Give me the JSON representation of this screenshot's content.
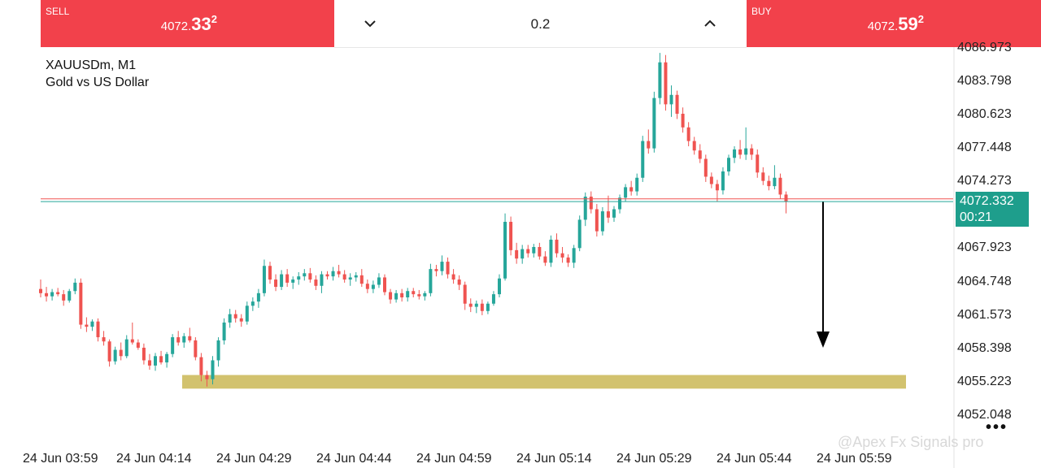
{
  "trade_bar": {
    "sell": {
      "label": "SELL",
      "price_main": "4072.",
      "price_big": "33",
      "price_sup": "2"
    },
    "buy": {
      "label": "BUY",
      "price_main": "4072.",
      "price_big": "59",
      "price_sup": "2"
    },
    "volume": "0.2",
    "volume_down_icon": "chevron-down-icon",
    "volume_up_icon": "chevron-up-icon"
  },
  "symbol": {
    "name": "XAUUSDm, M1",
    "description": "Gold vs US Dollar"
  },
  "price_axis": {
    "labels": [
      "4086.973",
      "4083.798",
      "4080.623",
      "4077.448",
      "4074.273",
      "4067.923",
      "4064.748",
      "4061.573",
      "4058.398",
      "4055.223",
      "4052.048"
    ],
    "current_price": "4072.332",
    "countdown": "00:21"
  },
  "time_axis": {
    "labels": [
      "24 Jun 03:59",
      "24 Jun 04:14",
      "24 Jun 04:29",
      "24 Jun 04:44",
      "24 Jun 04:59",
      "24 Jun 05:14",
      "24 Jun 05:29",
      "24 Jun 05:44",
      "24 Jun 05:59"
    ]
  },
  "watermark": "@Apex Fx Signals pro",
  "more_icon": "more-dots-icon",
  "colors": {
    "bull": "#26a69a",
    "bear": "#ef5350",
    "zone": "#d2c26e",
    "header_red": "#f2414b",
    "current_price_bg": "#1e9e8c"
  },
  "chart_data": {
    "type": "candlestick",
    "symbol": "XAUUSDm",
    "timeframe": "M1",
    "ylim": [
      4052.048,
      4086.973
    ],
    "current_bid": 4072.332,
    "current_ask": 4072.592,
    "support_zone": [
      4054.5,
      4055.8
    ],
    "projection_arrow": {
      "from": 4072.3,
      "to": 4058.4
    },
    "candles": [
      {
        "o": 4064.0,
        "h": 4064.9,
        "l": 4063.2,
        "c": 4063.6
      },
      {
        "o": 4063.6,
        "h": 4064.2,
        "l": 4062.8,
        "c": 4063.3
      },
      {
        "o": 4063.3,
        "h": 4064.0,
        "l": 4062.9,
        "c": 4063.7
      },
      {
        "o": 4063.7,
        "h": 4064.1,
        "l": 4063.3,
        "c": 4063.5
      },
      {
        "o": 4063.5,
        "h": 4063.9,
        "l": 4062.4,
        "c": 4062.9
      },
      {
        "o": 4062.9,
        "h": 4064.0,
        "l": 4062.7,
        "c": 4063.8
      },
      {
        "o": 4063.8,
        "h": 4065.0,
        "l": 4063.5,
        "c": 4064.6
      },
      {
        "o": 4064.6,
        "h": 4065.0,
        "l": 4060.2,
        "c": 4060.6
      },
      {
        "o": 4060.6,
        "h": 4061.3,
        "l": 4059.9,
        "c": 4060.4
      },
      {
        "o": 4060.4,
        "h": 4061.1,
        "l": 4060.0,
        "c": 4060.9
      },
      {
        "o": 4060.9,
        "h": 4061.2,
        "l": 4059.0,
        "c": 4059.4
      },
      {
        "o": 4059.4,
        "h": 4060.0,
        "l": 4058.6,
        "c": 4059.0
      },
      {
        "o": 4059.0,
        "h": 4059.2,
        "l": 4056.6,
        "c": 4057.1
      },
      {
        "o": 4057.1,
        "h": 4058.5,
        "l": 4056.8,
        "c": 4058.2
      },
      {
        "o": 4058.2,
        "h": 4058.9,
        "l": 4057.2,
        "c": 4057.6
      },
      {
        "o": 4057.6,
        "h": 4059.6,
        "l": 4057.4,
        "c": 4059.2
      },
      {
        "o": 4059.2,
        "h": 4060.8,
        "l": 4058.7,
        "c": 4058.9
      },
      {
        "o": 4058.9,
        "h": 4059.2,
        "l": 4058.2,
        "c": 4058.4
      },
      {
        "o": 4058.4,
        "h": 4058.8,
        "l": 4056.8,
        "c": 4057.2
      },
      {
        "o": 4057.2,
        "h": 4057.8,
        "l": 4056.3,
        "c": 4056.7
      },
      {
        "o": 4056.7,
        "h": 4057.9,
        "l": 4056.2,
        "c": 4057.6
      },
      {
        "o": 4057.6,
        "h": 4058.1,
        "l": 4056.8,
        "c": 4057.0
      },
      {
        "o": 4057.0,
        "h": 4058.0,
        "l": 4056.5,
        "c": 4057.8
      },
      {
        "o": 4057.8,
        "h": 4059.7,
        "l": 4057.5,
        "c": 4059.4
      },
      {
        "o": 4059.4,
        "h": 4060.0,
        "l": 4058.6,
        "c": 4058.9
      },
      {
        "o": 4058.9,
        "h": 4059.8,
        "l": 4058.4,
        "c": 4059.5
      },
      {
        "o": 4059.5,
        "h": 4060.3,
        "l": 4058.9,
        "c": 4059.1
      },
      {
        "o": 4059.1,
        "h": 4059.4,
        "l": 4057.2,
        "c": 4057.5
      },
      {
        "o": 4057.5,
        "h": 4057.9,
        "l": 4055.2,
        "c": 4055.8
      },
      {
        "o": 4055.8,
        "h": 4056.2,
        "l": 4054.7,
        "c": 4055.4
      },
      {
        "o": 4055.4,
        "h": 4057.6,
        "l": 4054.9,
        "c": 4057.2
      },
      {
        "o": 4057.2,
        "h": 4059.4,
        "l": 4056.6,
        "c": 4059.1
      },
      {
        "o": 4059.1,
        "h": 4061.2,
        "l": 4058.7,
        "c": 4060.8
      },
      {
        "o": 4060.8,
        "h": 4062.1,
        "l": 4060.3,
        "c": 4061.6
      },
      {
        "o": 4061.6,
        "h": 4062.0,
        "l": 4060.8,
        "c": 4061.2
      },
      {
        "o": 4061.2,
        "h": 4061.6,
        "l": 4060.4,
        "c": 4060.9
      },
      {
        "o": 4060.9,
        "h": 4062.8,
        "l": 4060.6,
        "c": 4062.4
      },
      {
        "o": 4062.4,
        "h": 4063.2,
        "l": 4061.9,
        "c": 4062.8
      },
      {
        "o": 4062.8,
        "h": 4064.0,
        "l": 4062.2,
        "c": 4063.6
      },
      {
        "o": 4063.6,
        "h": 4066.8,
        "l": 4063.3,
        "c": 4066.2
      },
      {
        "o": 4066.2,
        "h": 4066.6,
        "l": 4064.5,
        "c": 4064.9
      },
      {
        "o": 4064.9,
        "h": 4065.4,
        "l": 4063.8,
        "c": 4064.2
      },
      {
        "o": 4064.2,
        "h": 4065.8,
        "l": 4063.9,
        "c": 4065.4
      },
      {
        "o": 4065.4,
        "h": 4065.9,
        "l": 4064.2,
        "c": 4064.6
      },
      {
        "o": 4064.6,
        "h": 4065.2,
        "l": 4064.0,
        "c": 4064.9
      },
      {
        "o": 4064.9,
        "h": 4065.6,
        "l": 4064.4,
        "c": 4065.2
      },
      {
        "o": 4065.2,
        "h": 4065.9,
        "l": 4064.8,
        "c": 4065.5
      },
      {
        "o": 4065.5,
        "h": 4066.0,
        "l": 4064.6,
        "c": 4064.9
      },
      {
        "o": 4064.9,
        "h": 4065.3,
        "l": 4063.9,
        "c": 4064.3
      },
      {
        "o": 4064.3,
        "h": 4065.7,
        "l": 4063.6,
        "c": 4065.4
      },
      {
        "o": 4065.4,
        "h": 4065.7,
        "l": 4064.9,
        "c": 4065.2
      },
      {
        "o": 4065.2,
        "h": 4066.1,
        "l": 4064.8,
        "c": 4065.7
      },
      {
        "o": 4065.7,
        "h": 4066.3,
        "l": 4065.1,
        "c": 4065.4
      },
      {
        "o": 4065.4,
        "h": 4065.8,
        "l": 4064.6,
        "c": 4064.9
      },
      {
        "o": 4064.9,
        "h": 4065.5,
        "l": 4064.3,
        "c": 4065.1
      },
      {
        "o": 4065.1,
        "h": 4065.6,
        "l": 4064.7,
        "c": 4065.3
      },
      {
        "o": 4065.3,
        "h": 4065.9,
        "l": 4064.2,
        "c": 4064.5
      },
      {
        "o": 4064.5,
        "h": 4064.9,
        "l": 4063.6,
        "c": 4064.0
      },
      {
        "o": 4064.0,
        "h": 4064.8,
        "l": 4063.6,
        "c": 4064.4
      },
      {
        "o": 4064.4,
        "h": 4065.5,
        "l": 4064.1,
        "c": 4065.1
      },
      {
        "o": 4065.1,
        "h": 4065.4,
        "l": 4063.4,
        "c": 4063.7
      },
      {
        "o": 4063.7,
        "h": 4064.0,
        "l": 4062.6,
        "c": 4063.0
      },
      {
        "o": 4063.0,
        "h": 4063.9,
        "l": 4062.7,
        "c": 4063.6
      },
      {
        "o": 4063.6,
        "h": 4064.0,
        "l": 4062.8,
        "c": 4063.2
      },
      {
        "o": 4063.2,
        "h": 4064.1,
        "l": 4062.8,
        "c": 4063.8
      },
      {
        "o": 4063.8,
        "h": 4064.1,
        "l": 4063.2,
        "c": 4063.5
      },
      {
        "o": 4063.5,
        "h": 4063.9,
        "l": 4063.0,
        "c": 4063.3
      },
      {
        "o": 4063.3,
        "h": 4063.8,
        "l": 4062.9,
        "c": 4063.6
      },
      {
        "o": 4063.6,
        "h": 4066.4,
        "l": 4063.3,
        "c": 4065.9
      },
      {
        "o": 4065.9,
        "h": 4066.3,
        "l": 4065.2,
        "c": 4065.7
      },
      {
        "o": 4065.7,
        "h": 4067.2,
        "l": 4065.3,
        "c": 4066.6
      },
      {
        "o": 4066.6,
        "h": 4067.0,
        "l": 4065.0,
        "c": 4065.4
      },
      {
        "o": 4065.4,
        "h": 4065.9,
        "l": 4064.5,
        "c": 4064.9
      },
      {
        "o": 4064.9,
        "h": 4065.3,
        "l": 4063.9,
        "c": 4064.4
      },
      {
        "o": 4064.4,
        "h": 4064.7,
        "l": 4062.0,
        "c": 4062.6
      },
      {
        "o": 4062.6,
        "h": 4063.1,
        "l": 4061.8,
        "c": 4062.3
      },
      {
        "o": 4062.3,
        "h": 4062.9,
        "l": 4061.7,
        "c": 4062.6
      },
      {
        "o": 4062.6,
        "h": 4063.0,
        "l": 4061.5,
        "c": 4061.9
      },
      {
        "o": 4061.9,
        "h": 4062.8,
        "l": 4061.6,
        "c": 4062.6
      },
      {
        "o": 4062.6,
        "h": 4063.8,
        "l": 4062.4,
        "c": 4063.5
      },
      {
        "o": 4063.5,
        "h": 4065.4,
        "l": 4063.2,
        "c": 4065.0
      },
      {
        "o": 4065.0,
        "h": 4071.2,
        "l": 4064.8,
        "c": 4070.4
      },
      {
        "o": 4070.4,
        "h": 4070.9,
        "l": 4067.2,
        "c": 4067.7
      },
      {
        "o": 4067.7,
        "h": 4068.4,
        "l": 4066.4,
        "c": 4066.9
      },
      {
        "o": 4066.9,
        "h": 4068.2,
        "l": 4066.4,
        "c": 4067.8
      },
      {
        "o": 4067.8,
        "h": 4068.2,
        "l": 4067.0,
        "c": 4067.4
      },
      {
        "o": 4067.4,
        "h": 4068.3,
        "l": 4067.0,
        "c": 4068.0
      },
      {
        "o": 4068.0,
        "h": 4068.4,
        "l": 4066.8,
        "c": 4067.1
      },
      {
        "o": 4067.1,
        "h": 4067.6,
        "l": 4066.2,
        "c": 4066.5
      },
      {
        "o": 4066.5,
        "h": 4069.1,
        "l": 4066.1,
        "c": 4068.7
      },
      {
        "o": 4068.7,
        "h": 4069.3,
        "l": 4067.0,
        "c": 4067.4
      },
      {
        "o": 4067.4,
        "h": 4068.0,
        "l": 4066.5,
        "c": 4067.0
      },
      {
        "o": 4067.0,
        "h": 4067.3,
        "l": 4066.1,
        "c": 4066.5
      },
      {
        "o": 4066.5,
        "h": 4068.2,
        "l": 4066.0,
        "c": 4067.9
      },
      {
        "o": 4067.9,
        "h": 4071.0,
        "l": 4067.6,
        "c": 4070.6
      },
      {
        "o": 4070.6,
        "h": 4073.2,
        "l": 4070.0,
        "c": 4072.8
      },
      {
        "o": 4072.8,
        "h": 4073.3,
        "l": 4071.2,
        "c": 4071.6
      },
      {
        "o": 4071.6,
        "h": 4072.1,
        "l": 4069.0,
        "c": 4069.5
      },
      {
        "o": 4069.5,
        "h": 4071.8,
        "l": 4069.1,
        "c": 4071.4
      },
      {
        "o": 4071.4,
        "h": 4072.9,
        "l": 4070.3,
        "c": 4070.8
      },
      {
        "o": 4070.8,
        "h": 4071.9,
        "l": 4070.4,
        "c": 4071.6
      },
      {
        "o": 4071.6,
        "h": 4073.0,
        "l": 4071.2,
        "c": 4072.7
      },
      {
        "o": 4072.7,
        "h": 4074.0,
        "l": 4072.3,
        "c": 4073.7
      },
      {
        "o": 4073.7,
        "h": 4074.3,
        "l": 4072.9,
        "c": 4073.3
      },
      {
        "o": 4073.3,
        "h": 4075.0,
        "l": 4072.9,
        "c": 4074.6
      },
      {
        "o": 4074.6,
        "h": 4078.6,
        "l": 4074.2,
        "c": 4078.1
      },
      {
        "o": 4078.1,
        "h": 4079.2,
        "l": 4076.9,
        "c": 4077.4
      },
      {
        "o": 4077.4,
        "h": 4082.8,
        "l": 4077.0,
        "c": 4082.2
      },
      {
        "o": 4082.2,
        "h": 4086.5,
        "l": 4081.6,
        "c": 4085.6
      },
      {
        "o": 4085.6,
        "h": 4086.3,
        "l": 4081.0,
        "c": 4081.6
      },
      {
        "o": 4081.6,
        "h": 4083.4,
        "l": 4080.4,
        "c": 4082.5
      },
      {
        "o": 4082.5,
        "h": 4082.9,
        "l": 4080.2,
        "c": 4080.7
      },
      {
        "o": 4080.7,
        "h": 4081.3,
        "l": 4078.9,
        "c": 4079.4
      },
      {
        "o": 4079.4,
        "h": 4079.9,
        "l": 4077.6,
        "c": 4078.1
      },
      {
        "o": 4078.1,
        "h": 4078.5,
        "l": 4076.8,
        "c": 4077.2
      },
      {
        "o": 4077.2,
        "h": 4077.8,
        "l": 4076.0,
        "c": 4076.4
      },
      {
        "o": 4076.4,
        "h": 4076.8,
        "l": 4074.2,
        "c": 4074.7
      },
      {
        "o": 4074.7,
        "h": 4075.1,
        "l": 4073.6,
        "c": 4074.0
      },
      {
        "o": 4074.0,
        "h": 4074.4,
        "l": 4072.3,
        "c": 4073.4
      },
      {
        "o": 4073.4,
        "h": 4075.6,
        "l": 4073.0,
        "c": 4075.2
      },
      {
        "o": 4075.2,
        "h": 4076.8,
        "l": 4074.8,
        "c": 4076.5
      },
      {
        "o": 4076.5,
        "h": 4077.6,
        "l": 4076.0,
        "c": 4077.3
      },
      {
        "o": 4077.3,
        "h": 4078.2,
        "l": 4076.4,
        "c": 4076.8
      },
      {
        "o": 4076.8,
        "h": 4079.4,
        "l": 4076.3,
        "c": 4077.4
      },
      {
        "o": 4077.4,
        "h": 4077.8,
        "l": 4076.3,
        "c": 4076.8
      },
      {
        "o": 4076.8,
        "h": 4077.3,
        "l": 4074.6,
        "c": 4075.1
      },
      {
        "o": 4075.1,
        "h": 4075.6,
        "l": 4073.9,
        "c": 4074.3
      },
      {
        "o": 4074.3,
        "h": 4074.8,
        "l": 4073.4,
        "c": 4073.8
      },
      {
        "o": 4073.8,
        "h": 4075.8,
        "l": 4073.5,
        "c": 4074.6
      },
      {
        "o": 4074.6,
        "h": 4075.0,
        "l": 4072.6,
        "c": 4073.0
      },
      {
        "o": 4073.0,
        "h": 4073.3,
        "l": 4071.2,
        "c": 4072.3
      }
    ]
  }
}
